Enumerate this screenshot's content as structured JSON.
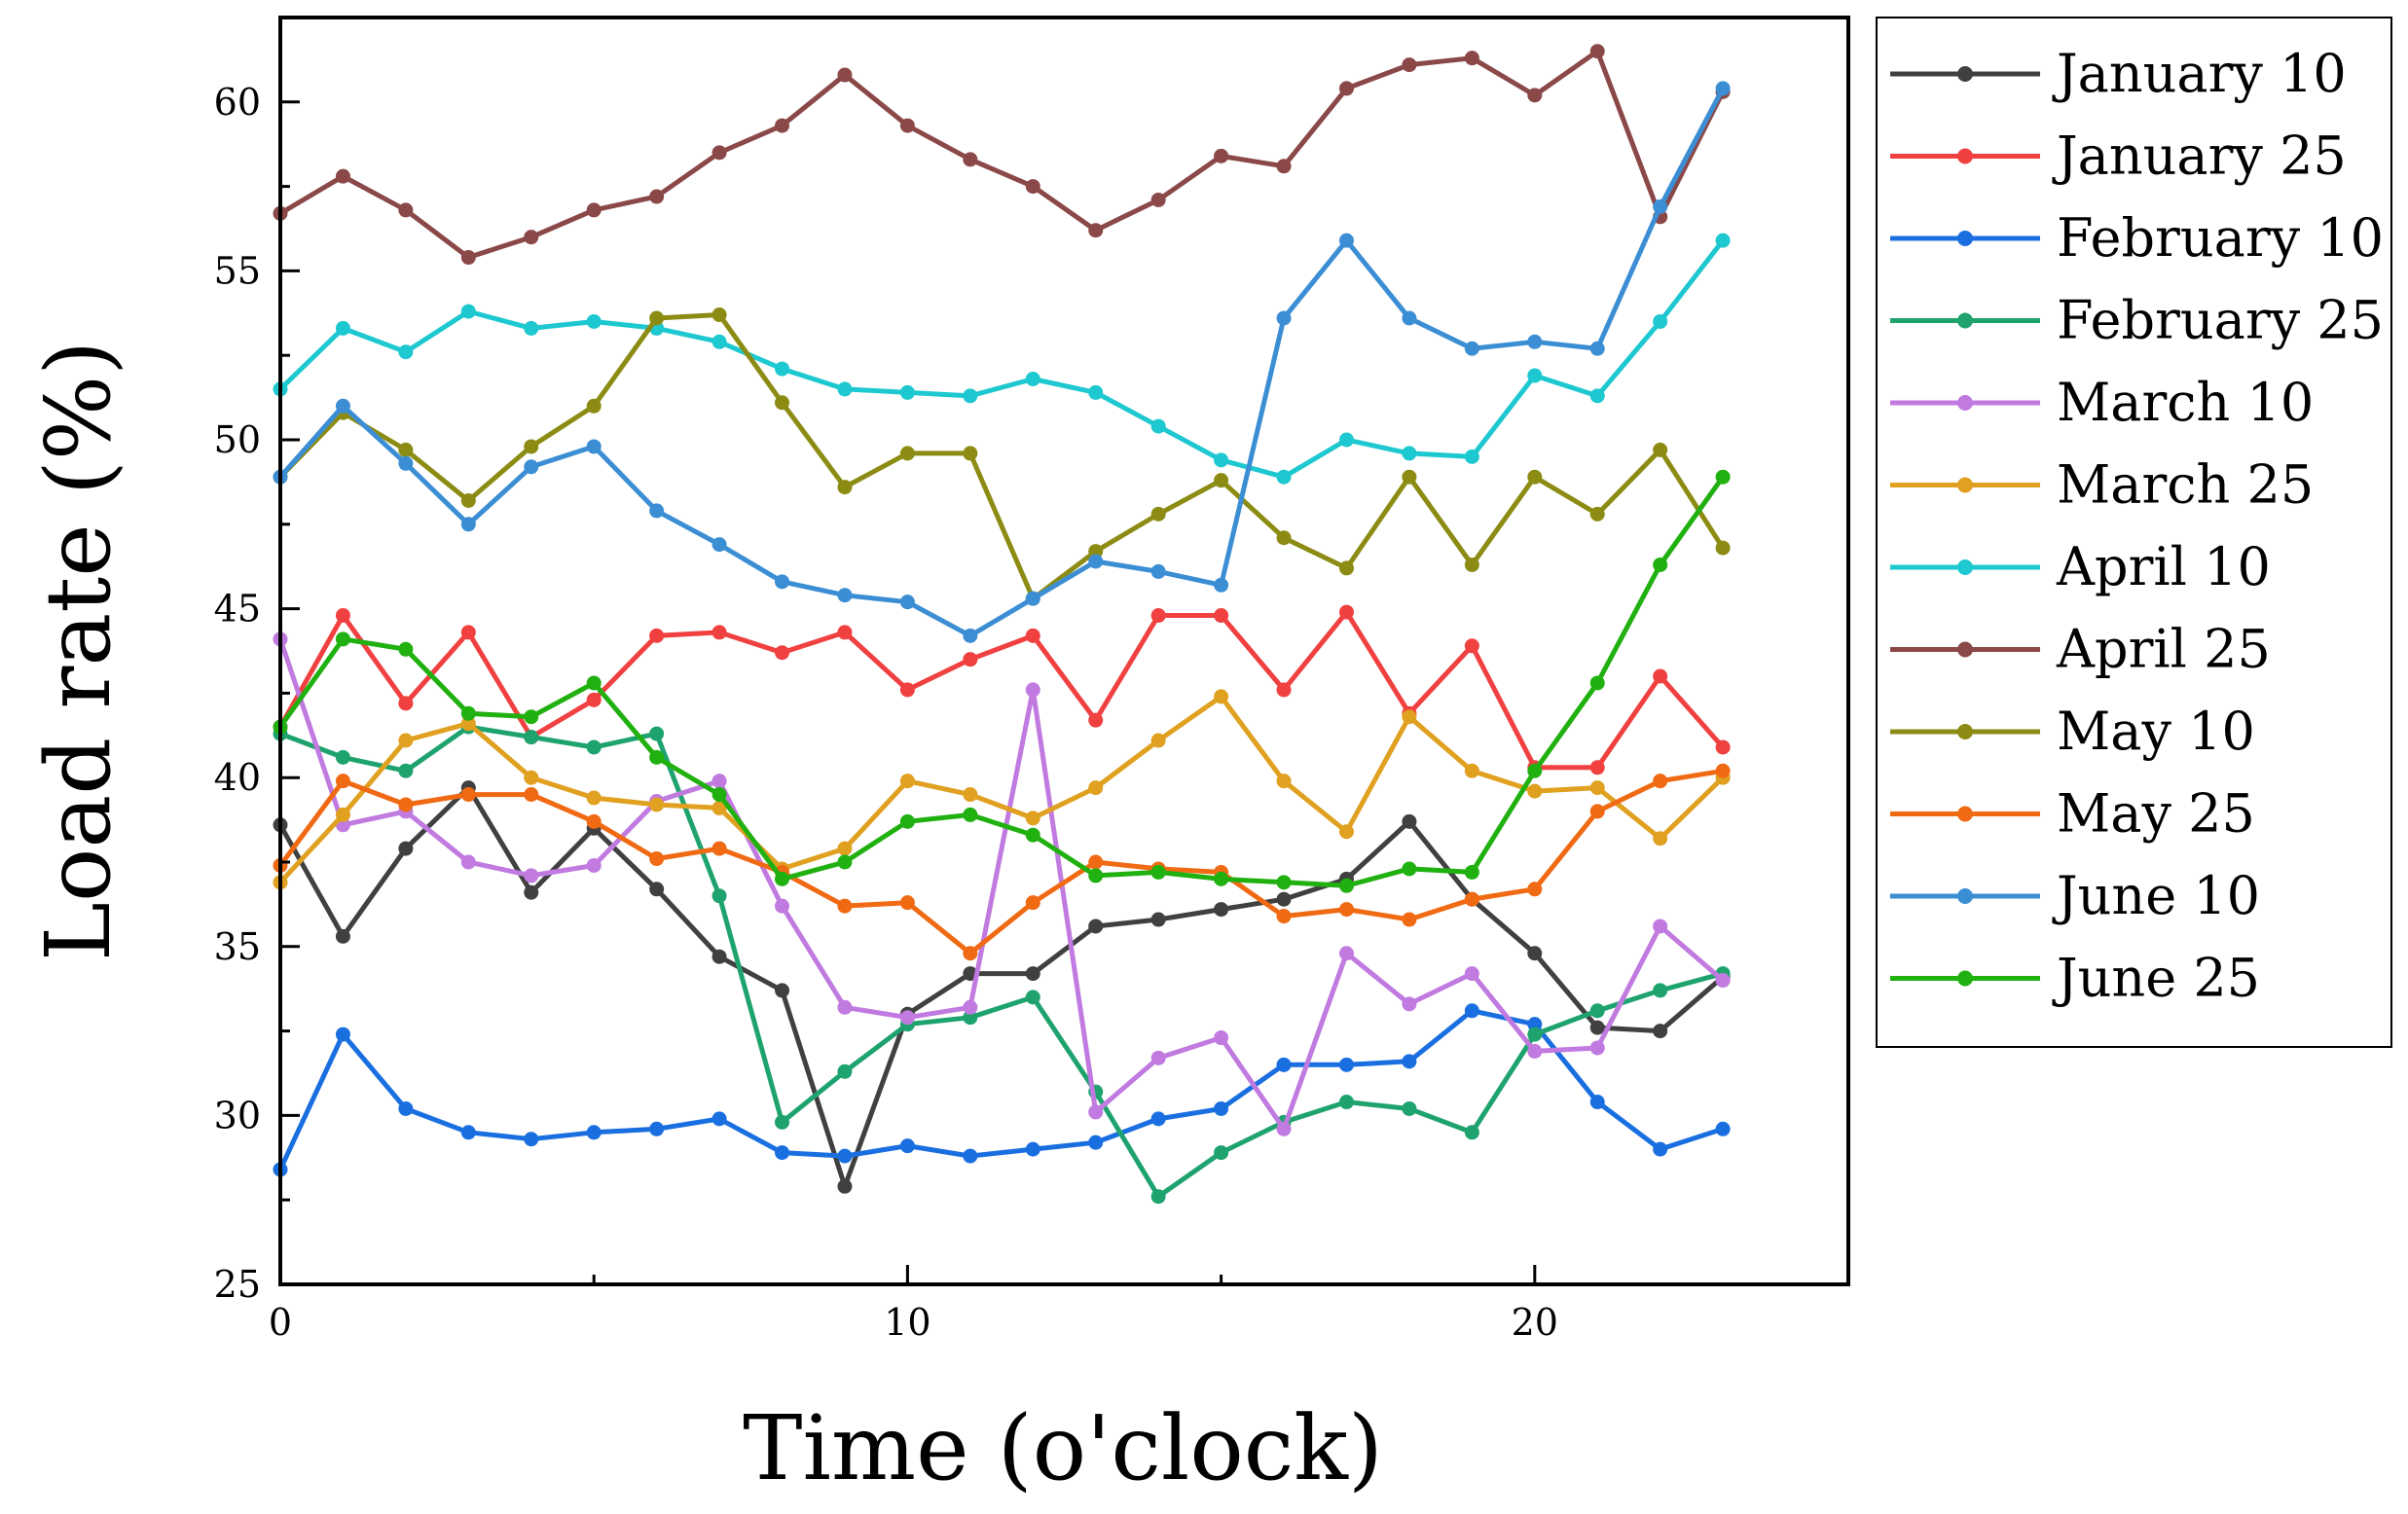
{
  "chart_data": {
    "type": "line",
    "title": "",
    "xlabel": "Time (o'clock)",
    "ylabel": "Load rate (%)",
    "xlim": [
      0,
      25
    ],
    "ylim": [
      25,
      62.5
    ],
    "x_ticks": [
      0,
      10,
      20
    ],
    "y_ticks": [
      25,
      30,
      35,
      40,
      45,
      50,
      55,
      60
    ],
    "legend_position": "right-outside",
    "x": [
      0,
      1,
      2,
      3,
      4,
      5,
      6,
      7,
      8,
      9,
      10,
      11,
      12,
      13,
      14,
      15,
      16,
      17,
      18,
      19,
      20,
      21,
      22,
      23
    ],
    "series": [
      {
        "name": "January 10",
        "color": "#404040",
        "values": [
          38.6,
          35.3,
          37.9,
          39.7,
          36.6,
          38.5,
          36.7,
          34.7,
          33.7,
          27.9,
          33.0,
          34.2,
          34.2,
          35.6,
          35.8,
          36.1,
          36.4,
          37.0,
          38.7,
          36.4,
          34.8,
          32.6,
          32.5,
          34.1
        ]
      },
      {
        "name": "January 25",
        "color": "#f04040",
        "values": [
          41.5,
          44.8,
          42.2,
          44.3,
          41.2,
          42.3,
          44.2,
          44.3,
          43.7,
          44.3,
          42.6,
          43.5,
          44.2,
          41.7,
          44.8,
          44.8,
          42.6,
          44.9,
          41.9,
          43.9,
          40.3,
          40.3,
          43.0,
          40.9
        ]
      },
      {
        "name": "February 10",
        "color": "#1a6fe0",
        "values": [
          28.4,
          32.4,
          30.2,
          29.5,
          29.3,
          29.5,
          29.6,
          29.9,
          28.9,
          28.8,
          29.1,
          28.8,
          29.0,
          29.2,
          29.9,
          30.2,
          31.5,
          31.5,
          31.6,
          33.1,
          32.7,
          30.4,
          29.0,
          29.6
        ]
      },
      {
        "name": "February 25",
        "color": "#1ea36e",
        "values": [
          41.3,
          40.6,
          40.2,
          41.5,
          41.2,
          40.9,
          41.3,
          36.5,
          29.8,
          31.3,
          32.7,
          32.9,
          33.5,
          30.7,
          27.6,
          28.9,
          29.8,
          30.4,
          30.2,
          29.5,
          32.4,
          33.1,
          33.7,
          34.2
        ]
      },
      {
        "name": "March 10",
        "color": "#c07ae0",
        "values": [
          44.1,
          38.6,
          39.0,
          37.5,
          37.1,
          37.4,
          39.3,
          39.9,
          36.2,
          33.2,
          32.9,
          33.2,
          42.6,
          30.1,
          31.7,
          32.3,
          29.6,
          34.8,
          33.3,
          34.2,
          31.9,
          32.0,
          35.6,
          34.0
        ]
      },
      {
        "name": "March 25",
        "color": "#e0a020",
        "values": [
          36.9,
          38.9,
          41.1,
          41.6,
          40.0,
          39.4,
          39.2,
          39.1,
          37.3,
          37.9,
          39.9,
          39.5,
          38.8,
          39.7,
          41.1,
          42.4,
          39.9,
          38.4,
          41.8,
          40.2,
          39.6,
          39.7,
          38.2,
          40.0
        ]
      },
      {
        "name": "April 10",
        "color": "#1ec8d0",
        "values": [
          51.5,
          53.3,
          52.6,
          53.8,
          53.3,
          53.5,
          53.3,
          52.9,
          52.1,
          51.5,
          51.4,
          51.3,
          51.8,
          51.4,
          50.4,
          49.4,
          48.9,
          50.0,
          49.6,
          49.5,
          51.9,
          51.3,
          53.5,
          55.9
        ]
      },
      {
        "name": "April 25",
        "color": "#8b4848",
        "values": [
          56.7,
          57.8,
          56.8,
          55.4,
          56.0,
          56.8,
          57.2,
          58.5,
          59.3,
          60.8,
          59.3,
          58.3,
          57.5,
          56.2,
          57.1,
          58.4,
          58.1,
          60.4,
          61.1,
          61.3,
          60.2,
          61.5,
          56.6,
          60.3
        ]
      },
      {
        "name": "May 10",
        "color": "#8c8c14",
        "values": [
          48.9,
          50.8,
          49.7,
          48.2,
          49.8,
          51.0,
          53.6,
          53.7,
          51.1,
          48.6,
          49.6,
          49.6,
          45.3,
          46.7,
          47.8,
          48.8,
          47.1,
          46.2,
          48.9,
          46.3,
          48.9,
          47.8,
          49.7,
          46.8
        ]
      },
      {
        "name": "May 25",
        "color": "#f06a14",
        "values": [
          37.4,
          39.9,
          39.2,
          39.5,
          39.5,
          38.7,
          37.6,
          37.9,
          37.2,
          36.2,
          36.3,
          34.8,
          36.3,
          37.5,
          37.3,
          37.2,
          35.9,
          36.1,
          35.8,
          36.4,
          36.7,
          39.0,
          39.9,
          40.2
        ]
      },
      {
        "name": "June 10",
        "color": "#3c8ed4",
        "values": [
          48.9,
          51.0,
          49.3,
          47.5,
          49.2,
          49.8,
          47.9,
          46.9,
          45.8,
          45.4,
          45.2,
          44.2,
          45.3,
          46.4,
          46.1,
          45.7,
          53.6,
          55.9,
          53.6,
          52.7,
          52.9,
          52.7,
          56.9,
          60.4
        ]
      },
      {
        "name": "June 25",
        "color": "#20b010",
        "values": [
          41.5,
          44.1,
          43.8,
          41.9,
          41.8,
          42.8,
          40.6,
          39.5,
          37.0,
          37.5,
          38.7,
          38.9,
          38.3,
          37.1,
          37.2,
          37.0,
          36.9,
          36.8,
          37.3,
          37.2,
          40.2,
          42.8,
          46.3,
          48.9
        ]
      }
    ]
  }
}
